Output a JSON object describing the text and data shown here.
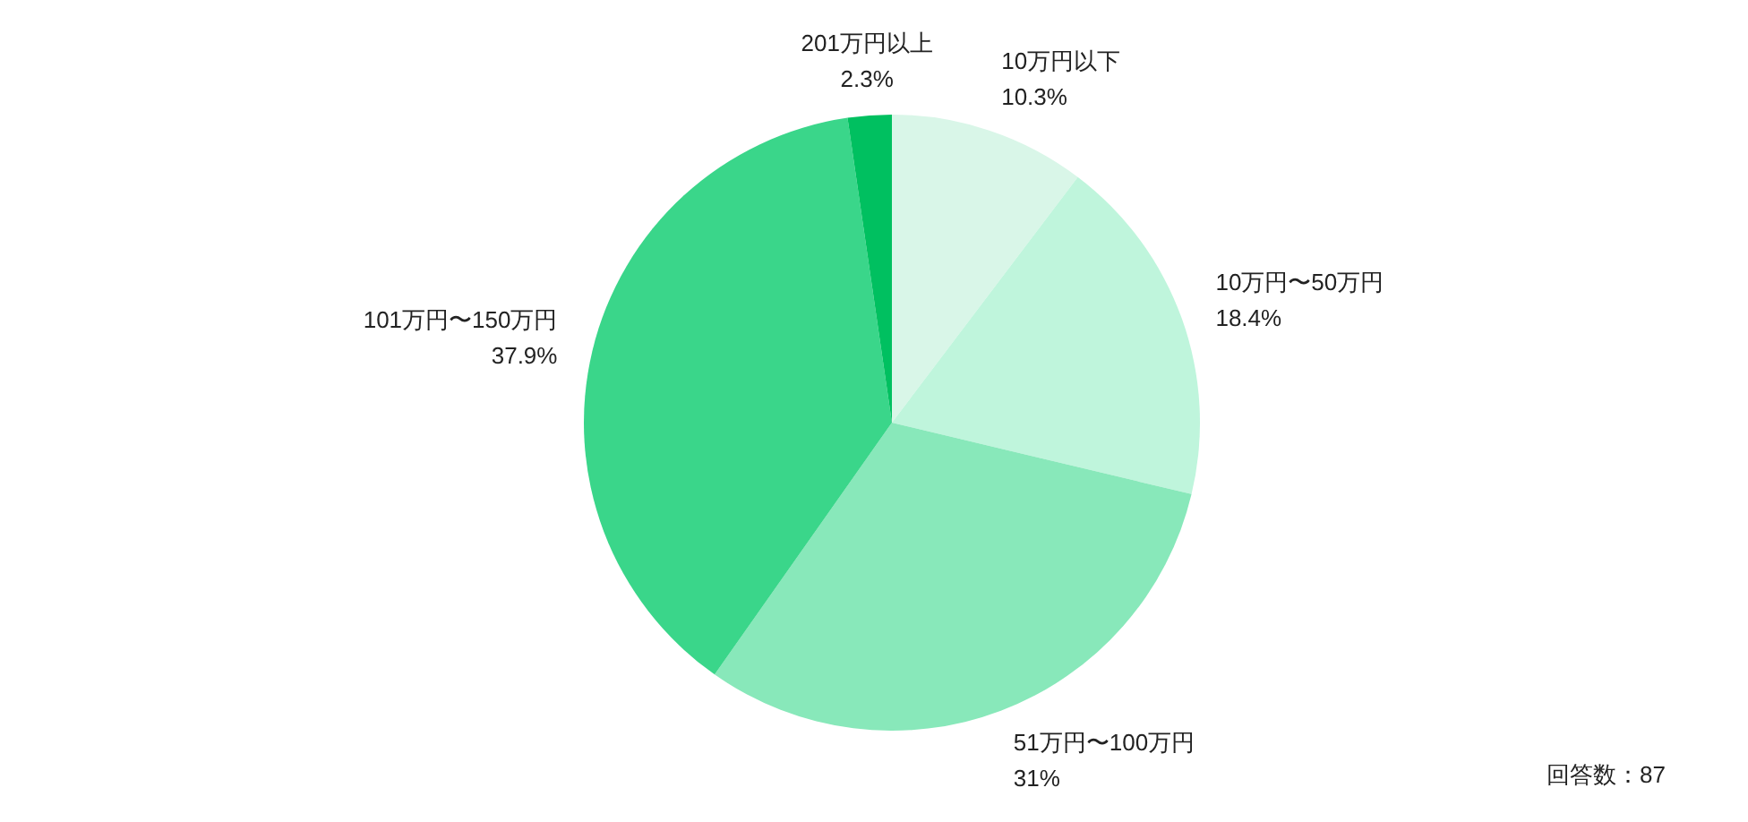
{
  "chart_data": {
    "type": "pie",
    "categories": [
      "10万円以下",
      "10万円〜50万円",
      "51万円〜100万円",
      "101万円〜150万円",
      "201万円以上"
    ],
    "values": [
      10.3,
      18.4,
      31,
      37.9,
      2.3
    ],
    "value_labels": [
      "10.3%",
      "18.4%",
      "31%",
      "37.9%",
      "2.3%"
    ],
    "colors": [
      "#d9f6e8",
      "#bff5dc",
      "#88e8ba",
      "#3ad68a",
      "#00c060"
    ],
    "annotations": [
      "回答数：87"
    ]
  }
}
